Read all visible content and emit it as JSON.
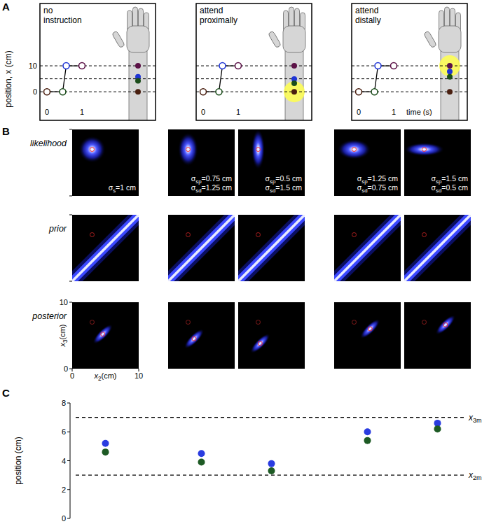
{
  "panel_labels": [
    "A",
    "B",
    "C"
  ],
  "chart_data": [
    {
      "type": "line",
      "title": "no instruction",
      "x": [
        0,
        0.45,
        0.55,
        1
      ],
      "xlim": [
        -0.2,
        3.1
      ],
      "ylim": [
        -11,
        34
      ],
      "xticks": [
        0,
        1
      ],
      "yticks": [
        0,
        10
      ],
      "y_label": "position, x (cm)",
      "series": [
        {
          "color": "#000000",
          "colors": [
            "#4a1f10",
            "#1b4d1b",
            "#1f35d6",
            "#5c1247"
          ],
          "marker": "circle",
          "values": [
            0,
            0,
            10,
            10
          ]
        }
      ],
      "reference_lines": [
        0,
        5,
        10
      ],
      "arm_dots": {
        "colors": [
          "#5c1247",
          "#1f35d6",
          "#1b4d1b",
          "#4a1f10"
        ],
        "values": [
          10,
          5.8,
          4.2,
          0
        ]
      }
    },
    {
      "type": "line",
      "title": "attend proximally",
      "x": [
        0,
        0.45,
        0.55,
        1
      ],
      "xlim": [
        -0.2,
        3.1
      ],
      "ylim": [
        -11,
        34
      ],
      "xticks": [
        0,
        1
      ],
      "tick_labels": "x",
      "series": [
        {
          "color": "#000000",
          "colors": [
            "#4a1f10",
            "#1b4d1b",
            "#1f35d6",
            "#5c1247"
          ],
          "marker": "circle",
          "values": [
            0,
            0,
            10,
            10
          ]
        }
      ],
      "reference_lines": [
        0,
        5,
        10
      ],
      "attended_position": 0,
      "arm_dots": {
        "colors": [
          "#5c1247",
          "#1f35d6",
          "#1b4d1b",
          "#4a1f10"
        ],
        "values": [
          10,
          4.9,
          3.3,
          0
        ]
      }
    },
    {
      "type": "line",
      "title": "attend distally",
      "x": [
        0,
        0.45,
        0.55,
        1
      ],
      "xlim": [
        -0.2,
        3.1
      ],
      "ylim": [
        -11,
        34
      ],
      "xticks": [
        0,
        1
      ],
      "tick_labels": "x",
      "x_label": "time (s)",
      "series": [
        {
          "color": "#000000",
          "colors": [
            "#4a1f10",
            "#1b4d1b",
            "#1f35d6",
            "#5c1247"
          ],
          "marker": "circle",
          "values": [
            0,
            0,
            10,
            10
          ]
        }
      ],
      "reference_lines": [
        0,
        5,
        10
      ],
      "attended_position": 10,
      "arm_dots": {
        "colors": [
          "#5c1247",
          "#1f35d6",
          "#1b4d1b",
          "#4a1f10"
        ],
        "values": [
          10,
          7.8,
          5.8,
          0
        ]
      }
    },
    {
      "type": "scatter",
      "categories": [
        null,
        null,
        null,
        null,
        null
      ],
      "ylim": [
        0,
        8
      ],
      "yticks": [
        0,
        2,
        4,
        6,
        8
      ],
      "y_label": "position (cm)",
      "tick_labels": "y",
      "marker": "circle",
      "series": [
        {
          "color": "#2a3ce0",
          "values": [
            5.2,
            4.5,
            3.8,
            6.0,
            6.6
          ]
        },
        {
          "color": "#1d5a24",
          "values": [
            4.6,
            3.9,
            3.3,
            5.4,
            6.2
          ]
        }
      ],
      "reference_lines": [
        {
          "value": 7,
          "label": {
            "symbol": "x",
            "sub": "3m"
          }
        },
        {
          "value": 3,
          "label": {
            "symbol": "x",
            "sub": "2m"
          }
        }
      ]
    }
  ],
  "panel_b": {
    "row_labels": [
      "likelihood",
      "prior",
      "posterior"
    ],
    "xlim": [
      0,
      10
    ],
    "ylim": [
      0,
      10
    ],
    "xticks": [
      0,
      10
    ],
    "yticks": [
      0,
      10
    ],
    "x_label": {
      "symbol": "x",
      "sub": "2",
      "rest": "(cm)"
    },
    "y_label": {
      "symbol": "x",
      "sub": "3",
      "rest": "(cm)"
    },
    "likelihood": [
      {
        "sd": [
          1,
          1
        ],
        "labels": [
          {
            "symbol": "σ",
            "sub": "s",
            "rest": "=1 cm"
          }
        ]
      },
      {
        "sd": [
          0.75,
          1.25
        ],
        "labels": [
          {
            "symbol": "σ",
            "sub": "sp",
            "rest": "=0.75 cm"
          },
          {
            "symbol": "σ",
            "sub": "sd",
            "rest": "=1.25 cm"
          }
        ]
      },
      {
        "sd": [
          0.5,
          1.5
        ],
        "labels": [
          {
            "symbol": "σ",
            "sub": "sp",
            "rest": "=0.5 cm"
          },
          {
            "symbol": "σ",
            "sub": "sd",
            "rest": "=1.5 cm"
          }
        ]
      },
      {
        "sd": [
          1.25,
          0.75
        ],
        "labels": [
          {
            "symbol": "σ",
            "sub": "sp",
            "rest": "=1.25 cm"
          },
          {
            "symbol": "σ",
            "sub": "sd",
            "rest": "=0.75 cm"
          }
        ]
      },
      {
        "sd": [
          1.5,
          0.5
        ],
        "labels": [
          {
            "symbol": "σ",
            "sub": "sp",
            "rest": "=1.5 cm"
          },
          {
            "symbol": "σ",
            "sub": "sd",
            "rest": "=0.5 cm"
          }
        ]
      }
    ],
    "prior": {
      "offset": 0,
      "sd": 0.55
    },
    "posterior_sd": [
      0.9,
      0.3
    ]
  }
}
